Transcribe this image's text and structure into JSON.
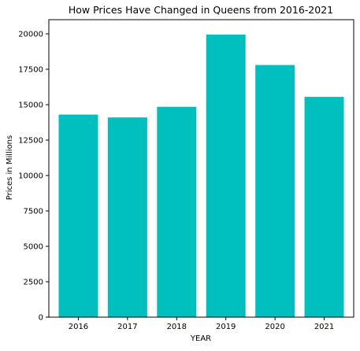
{
  "chart_data": {
    "type": "bar",
    "title": "How Prices Have Changed in Queens from 2016-2021",
    "xlabel": "YEAR",
    "ylabel": "Prices in Millions",
    "categories": [
      "2016",
      "2017",
      "2018",
      "2019",
      "2020",
      "2021"
    ],
    "values": [
      14300,
      14100,
      14850,
      19950,
      17800,
      15550
    ],
    "ylim": [
      0,
      21000
    ],
    "yticks": [
      0,
      2500,
      5000,
      7500,
      10000,
      12500,
      15000,
      17500,
      20000
    ],
    "grid": false,
    "legend": "none",
    "bar_color": "#00bfbf"
  }
}
